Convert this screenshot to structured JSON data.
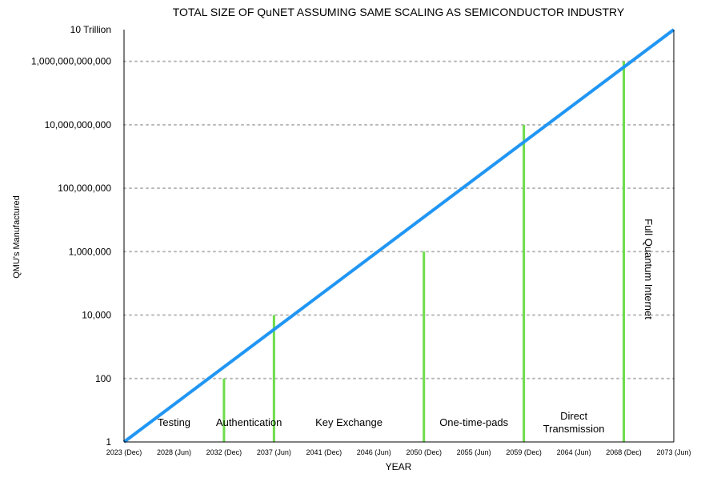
{
  "chart_data": {
    "type": "line",
    "title": "TOTAL SIZE OF QuNET ASSUMING SAME SCALING AS SEMICONDUCTOR INDUSTRY",
    "xlabel": "YEAR",
    "ylabel": "QMU's Manufactured",
    "y_scale": "log10",
    "ylim": [
      1,
      10000000000000
    ],
    "xlim": [
      "2023 (Dec)",
      "2073 (Jun)"
    ],
    "x_ticks": [
      "2023 (Dec)",
      "2028 (Jun)",
      "2032 (Dec)",
      "2037 (Jun)",
      "2041 (Dec)",
      "2046 (Jun)",
      "2050 (Dec)",
      "2055 (Jun)",
      "2059 (Dec)",
      "2064 (Jun)",
      "2068 (Dec)",
      "2073 (Jun)"
    ],
    "y_ticks": [
      {
        "value": 1,
        "label": "1"
      },
      {
        "value": 100,
        "label": "100"
      },
      {
        "value": 10000,
        "label": "10,000"
      },
      {
        "value": 1000000,
        "label": "1,000,000"
      },
      {
        "value": 100000000,
        "label": "100,000,000"
      },
      {
        "value": 10000000000,
        "label": "10,000,000,000"
      },
      {
        "value": 1000000000000,
        "label": "1,000,000,000,000"
      },
      {
        "value": 10000000000000,
        "label": "10 Trillion"
      }
    ],
    "grid": {
      "horizontal": true,
      "style": "dotted"
    },
    "series": [
      {
        "color": "#2196f3",
        "points": [
          {
            "x": "2023 (Dec)",
            "y": 1
          },
          {
            "x": "2073 (Jun)",
            "y": 10000000000000
          }
        ]
      }
    ],
    "milestones": {
      "color": "#6ddc4a",
      "lines": [
        {
          "x": "2032 (Dec)",
          "y": 100
        },
        {
          "x": "2037 (Jun)",
          "y": 10000
        },
        {
          "x": "2050 (Dec)",
          "y": 1000000
        },
        {
          "x": "2059 (Dec)",
          "y": 10000000000
        },
        {
          "x": "2068 (Dec)",
          "y": 1000000000000
        }
      ]
    },
    "region_labels": [
      {
        "text": "Testing",
        "from": "2023 (Dec)",
        "to": "2032 (Dec)"
      },
      {
        "text": "Authentication",
        "from": "2032 (Dec)",
        "to": "2037 (Jun)"
      },
      {
        "text": "Key Exchange",
        "from": "2037 (Jun)",
        "to": "2050 (Dec)"
      },
      {
        "text": "One-time-pads",
        "from": "2050 (Dec)",
        "to": "2059 (Dec)"
      },
      {
        "text": "Direct Transmission",
        "lines": [
          "Direct",
          "Transmission"
        ],
        "from": "2059 (Dec)",
        "to": "2068 (Dec)"
      },
      {
        "text": "Full Quantum Internet",
        "from": "2068 (Dec)",
        "to": "2073 (Jun)",
        "orientation": "vertical"
      }
    ]
  }
}
